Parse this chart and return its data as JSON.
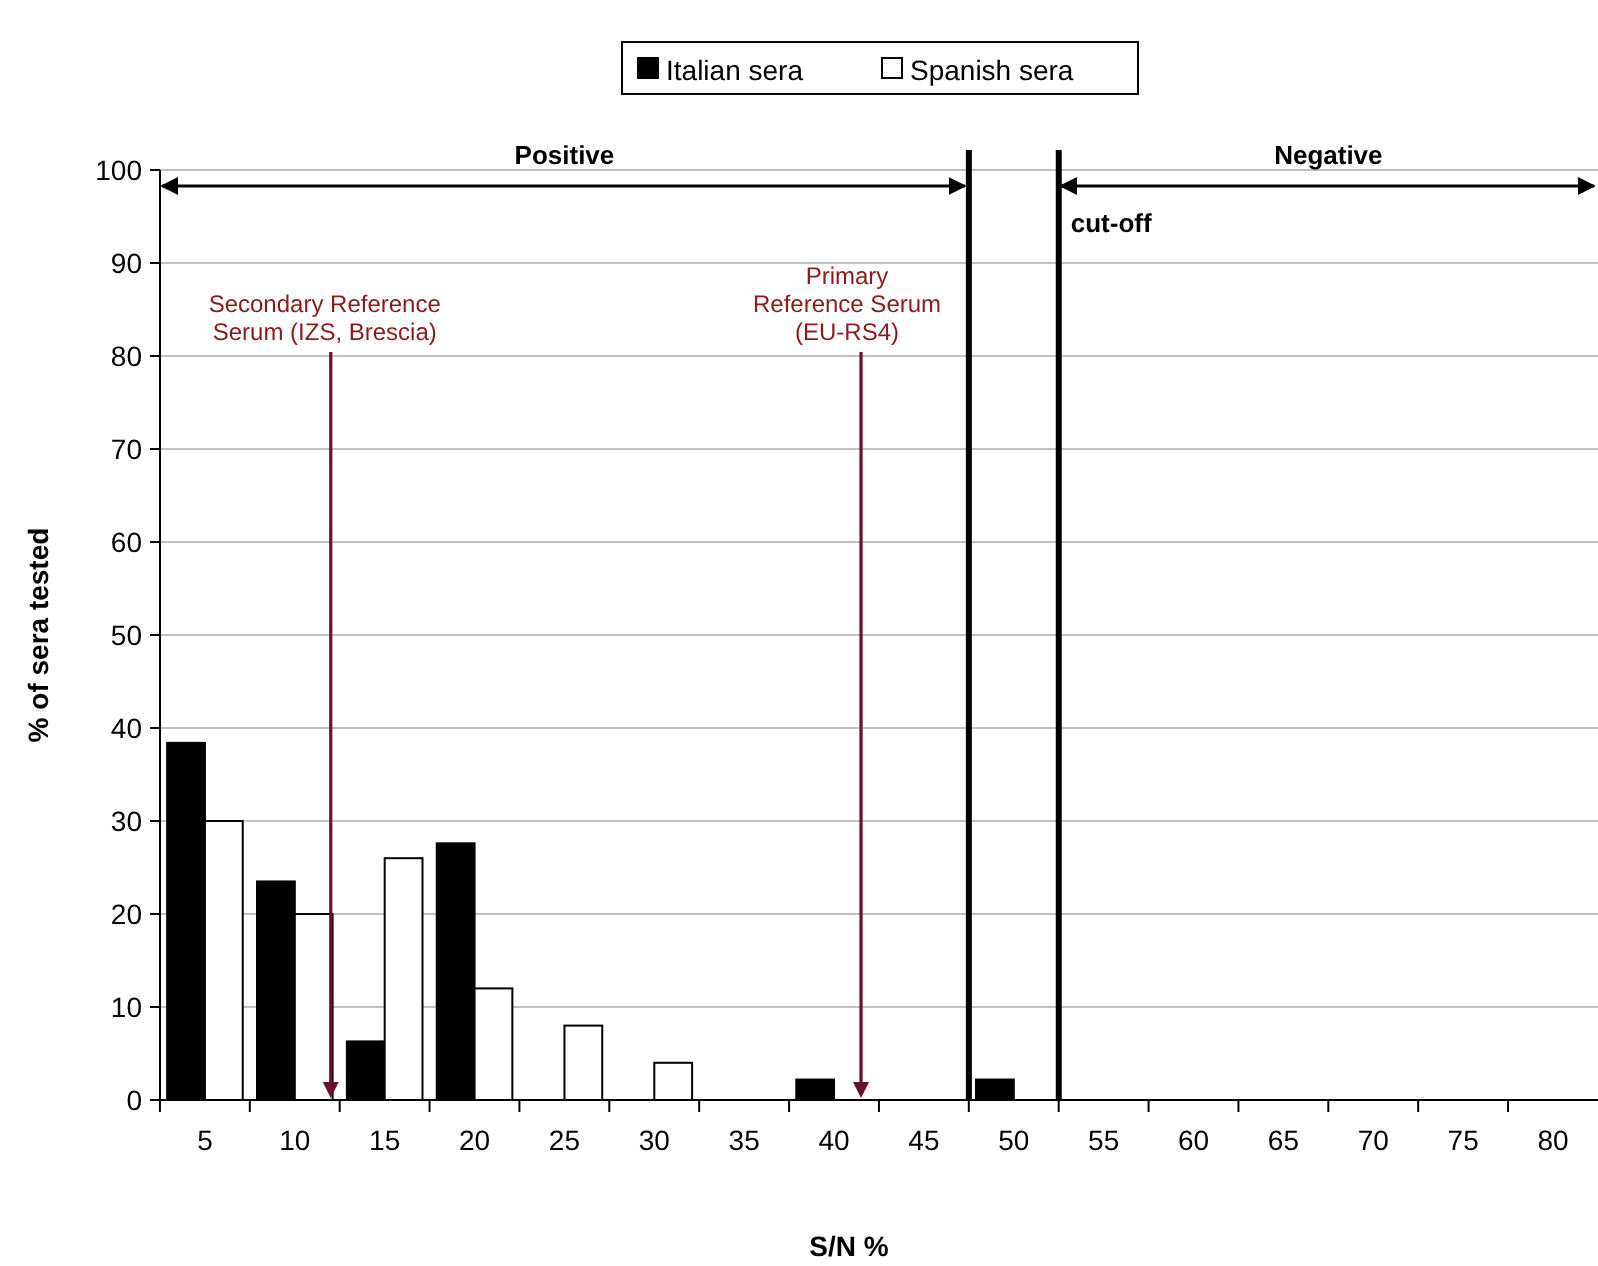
{
  "chart_data": {
    "type": "bar",
    "xlabel": "S/N %",
    "ylabel": "% of sera tested",
    "x": [
      5,
      10,
      15,
      20,
      25,
      30,
      35,
      40,
      45,
      50,
      55,
      60,
      65,
      70,
      75,
      80
    ],
    "series": [
      {
        "name": "Italian sera",
        "color": "#000000",
        "values": [
          38.4,
          23.5,
          6.3,
          27.6,
          0,
          0,
          0,
          2.2,
          0,
          2.2,
          0,
          0,
          0,
          0,
          0,
          0
        ]
      },
      {
        "name": "Spanish sera",
        "color": "#ffffff",
        "values": [
          30,
          20,
          26,
          12,
          8,
          4,
          0,
          0,
          0,
          0,
          0,
          0,
          0,
          0,
          0,
          0
        ]
      }
    ],
    "xlim": [
      2.5,
      82.5
    ],
    "xticks": [
      5,
      10,
      15,
      20,
      25,
      30,
      35,
      40,
      45,
      50,
      55,
      60,
      65,
      70,
      75,
      80
    ],
    "ylim": [
      0,
      100
    ],
    "yticks": [
      0,
      10,
      20,
      30,
      40,
      50,
      60,
      70,
      80,
      90,
      100
    ],
    "grid": "y",
    "legend": "top",
    "ref_lines": [
      {
        "axis": "x",
        "value": 47.5
      },
      {
        "axis": "x",
        "value": 52.5,
        "label": "cut-off"
      }
    ],
    "annotations": [
      "Positive",
      "Negative",
      "Secondary Reference\nSerum (IZS, Brescia)",
      "Primary\nReference Serum\n(EU-RS4)"
    ]
  }
}
